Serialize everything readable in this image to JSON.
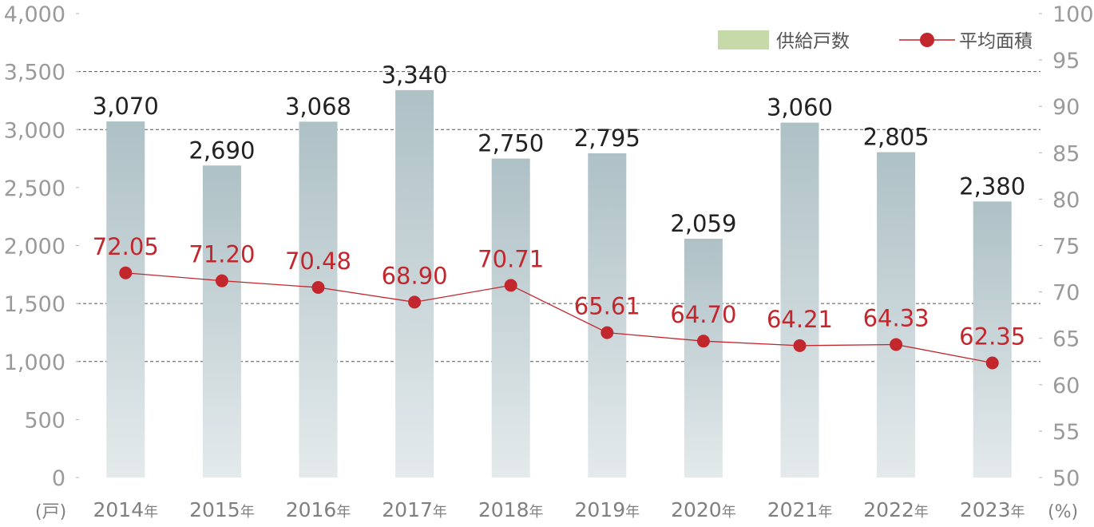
{
  "chart_data": {
    "type": "bar",
    "categories": [
      "2014年",
      "2015年",
      "2016年",
      "2017年",
      "2018年",
      "2019年",
      "2020年",
      "2021年",
      "2022年",
      "2023年"
    ],
    "category_years": [
      "2014",
      "2015",
      "2016",
      "2017",
      "2018",
      "2019",
      "2020",
      "2021",
      "2022",
      "2023"
    ],
    "category_suffix": "年",
    "series": [
      {
        "name": "供給戸数",
        "type": "bar",
        "axis": "left",
        "values": [
          3070,
          2690,
          3068,
          3340,
          2750,
          2795,
          2059,
          3060,
          2805,
          2380
        ],
        "labels": [
          "3,070",
          "2,690",
          "3,068",
          "3,340",
          "2,750",
          "2,795",
          "2,059",
          "3,060",
          "2,805",
          "2,380"
        ]
      },
      {
        "name": "平均面積",
        "type": "line",
        "axis": "right",
        "values": [
          72.05,
          71.2,
          70.48,
          68.9,
          70.71,
          65.61,
          64.7,
          64.21,
          64.33,
          62.35
        ],
        "labels": [
          "72.05",
          "71.20",
          "70.48",
          "68.90",
          "70.71",
          "65.61",
          "64.70",
          "64.21",
          "64.33",
          "62.35"
        ]
      }
    ],
    "left_axis": {
      "unit": "(戸)",
      "ylim": [
        0,
        4000
      ],
      "ticks": [
        0,
        500,
        1000,
        1500,
        2000,
        2500,
        3000,
        3500,
        4000
      ],
      "tick_labels": [
        "0",
        "500",
        "1,000",
        "1,500",
        "2,000",
        "2,500",
        "3,000",
        "3,500",
        "4,000"
      ]
    },
    "right_axis": {
      "unit": "(%)",
      "ylim": [
        50,
        100
      ],
      "ticks": [
        50,
        55,
        60,
        65,
        70,
        75,
        80,
        85,
        90,
        95,
        100
      ],
      "tick_labels": [
        "50",
        "55",
        "60",
        "65",
        "70",
        "75",
        "80",
        "85",
        "90",
        "95",
        "100"
      ]
    },
    "gridlines": [
      1000,
      1500,
      3000,
      3500
    ],
    "legend": {
      "placement": "top-right",
      "bar_swatch_color": "#c5d9a9"
    },
    "colors": {
      "bar_top": "#aec1c6",
      "bar_bottom": "#e4eaec",
      "line": "#c1272d",
      "grid": "#555555"
    }
  }
}
